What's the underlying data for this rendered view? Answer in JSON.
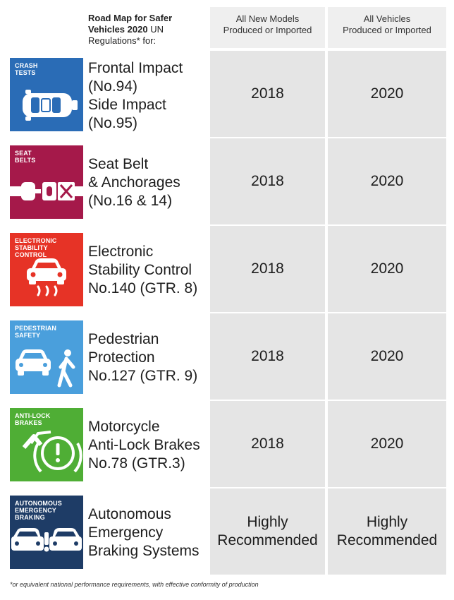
{
  "header": {
    "title_line1": "Road Map for Safer",
    "title_line2": "Vehicles 2020",
    "title_line2_tail": " UN",
    "title_line3": "Regulations* for:",
    "col1_line1": "All New Models",
    "col1_line2": "Produced or Imported",
    "col2_line1": "All Vehicles",
    "col2_line2": "Produced or Imported"
  },
  "rows": [
    {
      "badge_line1": "CRASH",
      "badge_line2": "TESTS",
      "badge_line3": "",
      "badge_color": "#2a6cb6",
      "icon": "car-top-view-icon",
      "desc": [
        "Frontal Impact",
        "(No.94)",
        "Side Impact",
        "(No.95)"
      ],
      "new_models": "2018",
      "all_vehicles": "2020"
    },
    {
      "badge_line1": "SEAT",
      "badge_line2": "BELTS",
      "badge_line3": "",
      "badge_color": "#a5194a",
      "icon": "seat-belt-buckle-icon",
      "desc": [
        "Seat Belt",
        "& Anchorages",
        "(No.16 & 14)"
      ],
      "new_models": "2018",
      "all_vehicles": "2020"
    },
    {
      "badge_line1": "ELECTRONIC",
      "badge_line2": "STABILITY",
      "badge_line3": "CONTROL",
      "badge_color": "#e63326",
      "icon": "skidding-car-icon",
      "desc": [
        "Electronic",
        "Stability Control",
        "No.140 (GTR. 8)"
      ],
      "new_models": "2018",
      "all_vehicles": "2020"
    },
    {
      "badge_line1": "PEDESTRIAN",
      "badge_line2": "SAFETY",
      "badge_line3": "",
      "badge_color": "#4a9fdc",
      "icon": "car-and-pedestrian-icon",
      "desc": [
        "Pedestrian",
        "Protection",
        "No.127 (GTR. 9)"
      ],
      "new_models": "2018",
      "all_vehicles": "2020"
    },
    {
      "badge_line1": "ANTI-LOCK",
      "badge_line2": "BRAKES",
      "badge_line3": "",
      "badge_color": "#4fae35",
      "icon": "abs-brake-warning-icon",
      "desc": [
        "Motorcycle",
        "Anti-Lock Brakes",
        "No.78 (GTR.3)"
      ],
      "new_models": "2018",
      "all_vehicles": "2020"
    },
    {
      "badge_line1": "AUTONOMOUS",
      "badge_line2": "EMERGENCY",
      "badge_line3": "BRAKING",
      "badge_color": "#1e3c66",
      "icon": "collision-warning-icon",
      "desc": [
        "Autonomous",
        "Emergency",
        "Braking Systems"
      ],
      "new_models_line1": "Highly",
      "new_models_line2": "Recommended",
      "all_vehicles_line1": "Highly",
      "all_vehicles_line2": "Recommended"
    }
  ],
  "footnote": "*or equivalent national performance requirements, with effective conformity of production"
}
